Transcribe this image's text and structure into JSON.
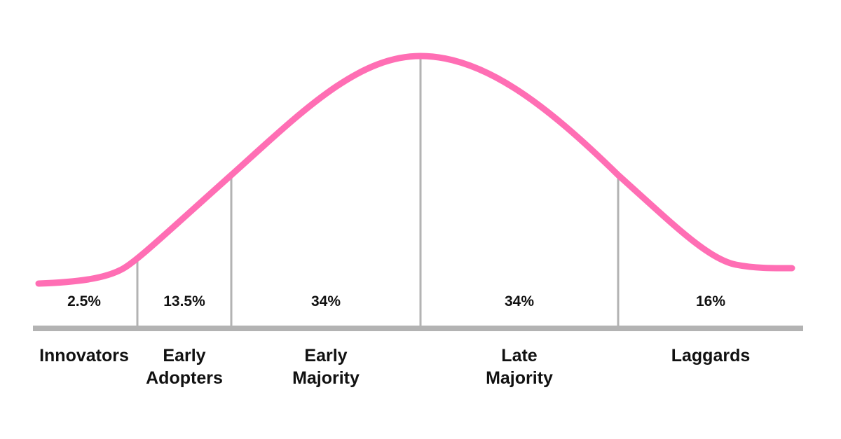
{
  "diagram": {
    "curve_color": "#ff6eb4",
    "line_color": "#b3b3b3",
    "text_color": "#111111",
    "segments": [
      {
        "percent": "2.5%",
        "label_lines": [
          "Innovators"
        ]
      },
      {
        "percent": "13.5%",
        "label_lines": [
          "Early",
          "Adopters"
        ]
      },
      {
        "percent": "34%",
        "label_lines": [
          "Early",
          "Majority"
        ]
      },
      {
        "percent": "34%",
        "label_lines": [
          "Late",
          "Majority"
        ]
      },
      {
        "percent": "16%",
        "label_lines": [
          "Laggards"
        ]
      }
    ]
  }
}
